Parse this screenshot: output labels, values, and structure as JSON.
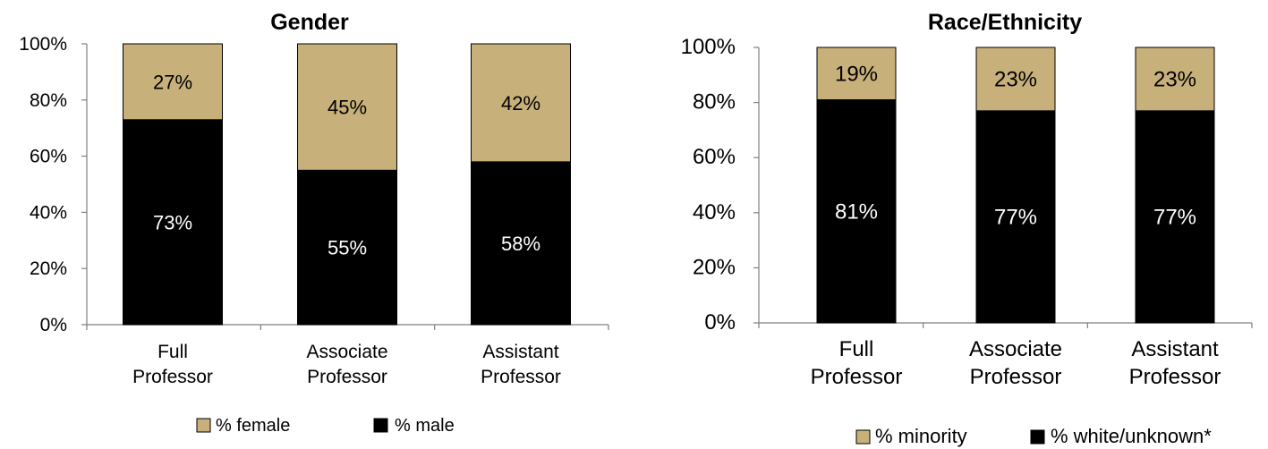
{
  "chart_data": [
    {
      "type": "bar",
      "stacked": true,
      "title": "Gender",
      "categories": [
        [
          "Full",
          "Professor"
        ],
        [
          "Associate",
          "Professor"
        ],
        [
          "Assistant",
          "Professor"
        ]
      ],
      "series": [
        {
          "name": "% male",
          "color": "#000000",
          "label_color": "#ffffff",
          "values": [
            73,
            55,
            58
          ],
          "labels": [
            "73%",
            "55%",
            "58%"
          ]
        },
        {
          "name": "% female",
          "color": "#c8b07a",
          "label_color": "#000000",
          "values": [
            27,
            45,
            42
          ],
          "labels": [
            "27%",
            "45%",
            "42%"
          ]
        }
      ],
      "ylim": [
        0,
        100
      ],
      "yticks": [
        "0%",
        "20%",
        "40%",
        "60%",
        "80%",
        "100%"
      ],
      "legend_order": [
        "% female",
        "% male"
      ],
      "legend_position": "bottom",
      "grid": false
    },
    {
      "type": "bar",
      "stacked": true,
      "title": "Race/Ethnicity",
      "categories": [
        [
          "Full",
          "Professor"
        ],
        [
          "Associate",
          "Professor"
        ],
        [
          "Assistant",
          "Professor"
        ]
      ],
      "series": [
        {
          "name": "% white/unknown*",
          "color": "#000000",
          "label_color": "#ffffff",
          "values": [
            81,
            77,
            77
          ],
          "labels": [
            "81%",
            "77%",
            "77%"
          ]
        },
        {
          "name": "% minority",
          "color": "#c8b07a",
          "label_color": "#000000",
          "values": [
            19,
            23,
            23
          ],
          "labels": [
            "19%",
            "23%",
            "23%"
          ]
        }
      ],
      "ylim": [
        0,
        100
      ],
      "yticks": [
        "0%",
        "20%",
        "40%",
        "60%",
        "80%",
        "100%"
      ],
      "legend_order": [
        "% minority",
        "% white/unknown*"
      ],
      "legend_position": "bottom",
      "grid": false
    }
  ]
}
